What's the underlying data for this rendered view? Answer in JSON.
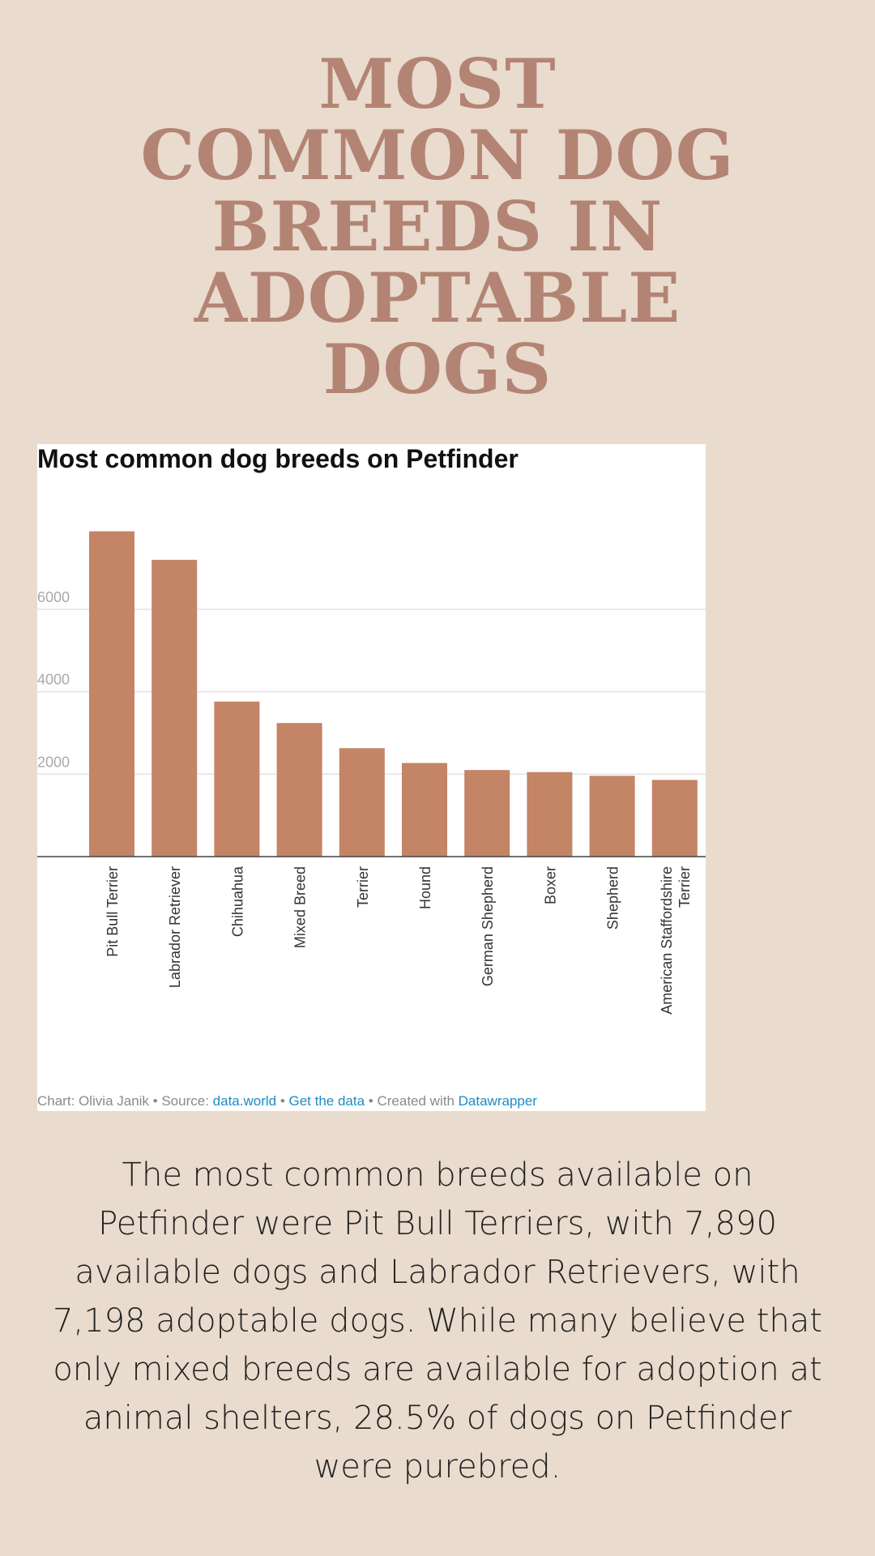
{
  "headline": {
    "lines": [
      "MOST",
      "COMMON DOG",
      "BREEDS IN",
      "ADOPTABLE",
      "DOGS"
    ]
  },
  "colors": {
    "background": "#e9dbcd",
    "headline": "#b38474",
    "bar": "#c48466",
    "link": "#1d8bc6"
  },
  "chart_data": {
    "type": "bar",
    "title": "Most common dog breeds on Petfinder",
    "categories": [
      "Pit Bull Terrier",
      "Labrador Retriever",
      "Chihuahua",
      "Mixed Breed",
      "Terrier",
      "Hound",
      "German Shepherd",
      "Boxer",
      "Shepherd",
      "American Staffordshire Terrier"
    ],
    "values": [
      7890,
      7198,
      3760,
      3240,
      2630,
      2270,
      2100,
      2050,
      1960,
      1860
    ],
    "yticks": [
      2000,
      4000,
      6000
    ],
    "ylim": [
      0,
      8000
    ],
    "xlabel": "",
    "ylabel": "",
    "grid": true,
    "legend": "none"
  },
  "footer": {
    "credit": "Chart: Olivia Janik • Source: ",
    "source_link": "data.world",
    "sep1": " • ",
    "data_link": "Get the data",
    "sep2": " • Created with ",
    "tool_link": "Datawrapper"
  },
  "body": {
    "text": "The most common breeds available on Petfinder were Pit Bull Terriers, with 7,890 available dogs and Labrador Retrievers, with 7,198 adoptable dogs. While many believe that only mixed breeds are available for adoption at animal shelters, 28.5% of dogs on Petfinder were purebred."
  }
}
